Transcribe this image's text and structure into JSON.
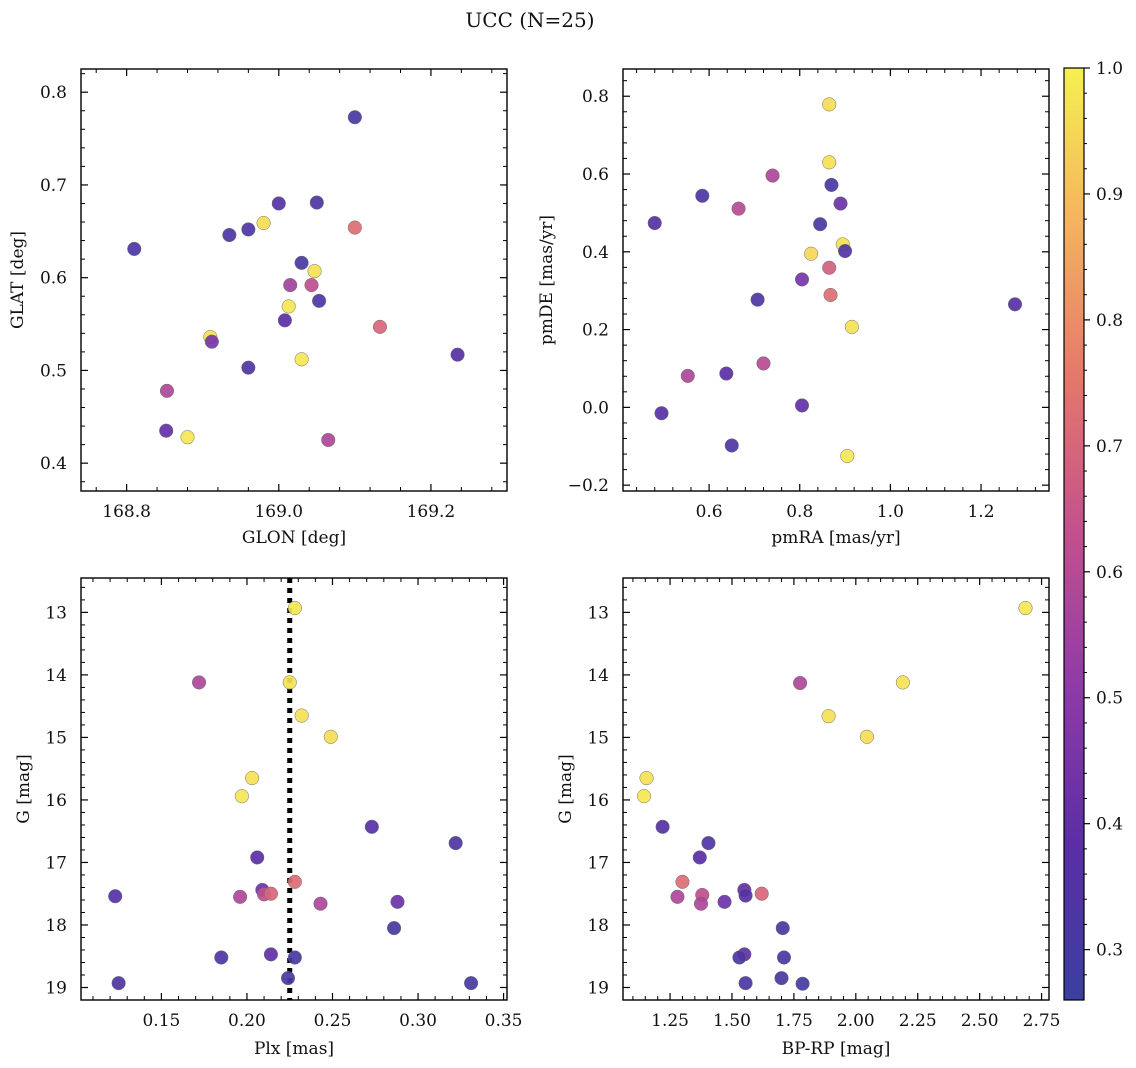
{
  "figure": {
    "title": "UCC (N=25)"
  },
  "colors": {
    "colormap": [
      "#3b3fa0",
      "#5b2ea6",
      "#8e3aa8",
      "#c3508e",
      "#e6776b",
      "#f5b25f",
      "#f5f052"
    ],
    "vline": "#000000"
  },
  "colorbar": {
    "min": 0.26,
    "max": 1.0,
    "ticks": [
      0.3,
      0.4,
      0.5,
      0.6,
      0.7,
      0.8,
      0.9,
      1.0
    ],
    "tick_labels": [
      "0.3",
      "0.4",
      "0.5",
      "0.6",
      "0.7",
      "0.8",
      "0.9",
      "1.0"
    ]
  },
  "chart_data": [
    {
      "type": "scatter",
      "xlabel": "GLON [deg]",
      "ylabel": "GLAT [deg]",
      "xlim": [
        168.74,
        169.3
      ],
      "ylim": [
        0.37,
        0.825
      ],
      "xticks": [
        168.8,
        169.0,
        169.2
      ],
      "xtick_labels": [
        "168.8",
        "169.0",
        "169.2"
      ],
      "yticks": [
        0.4,
        0.5,
        0.6,
        0.7,
        0.8
      ],
      "ytick_labels": [
        "0.4",
        "0.5",
        "0.6",
        "0.7",
        "0.8"
      ],
      "invert_y": false,
      "points": [
        {
          "x": 169.1,
          "y": 0.773,
          "c": 0.3
        },
        {
          "x": 168.81,
          "y": 0.631,
          "c": 0.33
        },
        {
          "x": 168.935,
          "y": 0.646,
          "c": 0.33
        },
        {
          "x": 168.96,
          "y": 0.652,
          "c": 0.33
        },
        {
          "x": 169.0,
          "y": 0.68,
          "c": 0.36
        },
        {
          "x": 169.05,
          "y": 0.681,
          "c": 0.33
        },
        {
          "x": 168.98,
          "y": 0.659,
          "c": 0.96
        },
        {
          "x": 169.03,
          "y": 0.616,
          "c": 0.3
        },
        {
          "x": 169.047,
          "y": 0.607,
          "c": 0.97
        },
        {
          "x": 169.015,
          "y": 0.592,
          "c": 0.55
        },
        {
          "x": 169.043,
          "y": 0.592,
          "c": 0.62
        },
        {
          "x": 169.1,
          "y": 0.654,
          "c": 0.72
        },
        {
          "x": 169.053,
          "y": 0.575,
          "c": 0.33
        },
        {
          "x": 169.013,
          "y": 0.569,
          "c": 0.98
        },
        {
          "x": 169.008,
          "y": 0.554,
          "c": 0.38
        },
        {
          "x": 169.133,
          "y": 0.547,
          "c": 0.7
        },
        {
          "x": 168.91,
          "y": 0.536,
          "c": 0.97
        },
        {
          "x": 168.912,
          "y": 0.531,
          "c": 0.45
        },
        {
          "x": 169.03,
          "y": 0.512,
          "c": 0.98
        },
        {
          "x": 168.96,
          "y": 0.503,
          "c": 0.33
        },
        {
          "x": 169.235,
          "y": 0.517,
          "c": 0.36
        },
        {
          "x": 168.853,
          "y": 0.478,
          "c": 0.58
        },
        {
          "x": 168.852,
          "y": 0.435,
          "c": 0.4
        },
        {
          "x": 168.88,
          "y": 0.428,
          "c": 0.98
        },
        {
          "x": 169.065,
          "y": 0.425,
          "c": 0.58
        }
      ]
    },
    {
      "type": "scatter",
      "xlabel": "pmRA [mas/yr]",
      "ylabel": "pmDE [mas/yr]",
      "xlim": [
        0.41,
        1.35
      ],
      "ylim": [
        -0.215,
        0.87
      ],
      "xticks": [
        0.6,
        0.8,
        1.0,
        1.2
      ],
      "xtick_labels": [
        "0.6",
        "0.8",
        "1.0",
        "1.2"
      ],
      "yticks": [
        -0.2,
        0.0,
        0.2,
        0.4,
        0.6,
        0.8
      ],
      "ytick_labels": [
        "−0.2",
        "0.0",
        "0.2",
        "0.4",
        "0.6",
        "0.8"
      ],
      "invert_y": false,
      "points": [
        {
          "x": 0.865,
          "y": 0.779,
          "c": 0.96
        },
        {
          "x": 0.865,
          "y": 0.63,
          "c": 0.97
        },
        {
          "x": 0.74,
          "y": 0.596,
          "c": 0.58
        },
        {
          "x": 0.87,
          "y": 0.572,
          "c": 0.3
        },
        {
          "x": 0.585,
          "y": 0.544,
          "c": 0.33
        },
        {
          "x": 0.89,
          "y": 0.524,
          "c": 0.42
        },
        {
          "x": 0.665,
          "y": 0.511,
          "c": 0.6
        },
        {
          "x": 0.48,
          "y": 0.474,
          "c": 0.36
        },
        {
          "x": 0.845,
          "y": 0.471,
          "c": 0.3
        },
        {
          "x": 0.895,
          "y": 0.419,
          "c": 0.97
        },
        {
          "x": 0.9,
          "y": 0.402,
          "c": 0.33
        },
        {
          "x": 0.825,
          "y": 0.395,
          "c": 0.95
        },
        {
          "x": 0.865,
          "y": 0.359,
          "c": 0.68
        },
        {
          "x": 0.805,
          "y": 0.329,
          "c": 0.45
        },
        {
          "x": 0.868,
          "y": 0.289,
          "c": 0.72
        },
        {
          "x": 0.707,
          "y": 0.277,
          "c": 0.33
        },
        {
          "x": 1.275,
          "y": 0.265,
          "c": 0.36
        },
        {
          "x": 0.915,
          "y": 0.207,
          "c": 0.97
        },
        {
          "x": 0.72,
          "y": 0.113,
          "c": 0.6
        },
        {
          "x": 0.638,
          "y": 0.087,
          "c": 0.38
        },
        {
          "x": 0.553,
          "y": 0.081,
          "c": 0.58
        },
        {
          "x": 0.805,
          "y": 0.005,
          "c": 0.4
        },
        {
          "x": 0.495,
          "y": -0.015,
          "c": 0.36
        },
        {
          "x": 0.65,
          "y": -0.098,
          "c": 0.33
        },
        {
          "x": 0.905,
          "y": -0.125,
          "c": 0.98
        }
      ]
    },
    {
      "type": "scatter",
      "xlabel": "Plx [mas]",
      "ylabel": "G [mag]",
      "xlim": [
        0.103,
        0.352
      ],
      "ylim": [
        12.45,
        19.2
      ],
      "xticks": [
        0.15,
        0.2,
        0.25,
        0.3,
        0.35
      ],
      "xtick_labels": [
        "0.15",
        "0.20",
        "0.25",
        "0.30",
        "0.35"
      ],
      "yticks": [
        13,
        14,
        15,
        16,
        17,
        18,
        19
      ],
      "ytick_labels": [
        "13",
        "14",
        "15",
        "16",
        "17",
        "18",
        "19"
      ],
      "invert_y": true,
      "vline": 0.225,
      "points": [
        {
          "x": 0.228,
          "y": 12.93,
          "c": 0.98
        },
        {
          "x": 0.172,
          "y": 14.12,
          "c": 0.58
        },
        {
          "x": 0.225,
          "y": 14.12,
          "c": 0.97
        },
        {
          "x": 0.232,
          "y": 14.65,
          "c": 0.97
        },
        {
          "x": 0.249,
          "y": 14.99,
          "c": 0.96
        },
        {
          "x": 0.203,
          "y": 15.65,
          "c": 0.97
        },
        {
          "x": 0.197,
          "y": 15.94,
          "c": 0.98
        },
        {
          "x": 0.273,
          "y": 16.43,
          "c": 0.36
        },
        {
          "x": 0.322,
          "y": 16.69,
          "c": 0.33
        },
        {
          "x": 0.206,
          "y": 16.92,
          "c": 0.38
        },
        {
          "x": 0.228,
          "y": 17.31,
          "c": 0.72
        },
        {
          "x": 0.209,
          "y": 17.44,
          "c": 0.42
        },
        {
          "x": 0.21,
          "y": 17.51,
          "c": 0.62
        },
        {
          "x": 0.214,
          "y": 17.5,
          "c": 0.7
        },
        {
          "x": 0.123,
          "y": 17.54,
          "c": 0.36
        },
        {
          "x": 0.196,
          "y": 17.55,
          "c": 0.58
        },
        {
          "x": 0.243,
          "y": 17.66,
          "c": 0.58
        },
        {
          "x": 0.288,
          "y": 17.63,
          "c": 0.42
        },
        {
          "x": 0.286,
          "y": 18.05,
          "c": 0.3
        },
        {
          "x": 0.185,
          "y": 18.52,
          "c": 0.33
        },
        {
          "x": 0.214,
          "y": 18.47,
          "c": 0.4
        },
        {
          "x": 0.228,
          "y": 18.52,
          "c": 0.3
        },
        {
          "x": 0.224,
          "y": 18.85,
          "c": 0.3
        },
        {
          "x": 0.125,
          "y": 18.93,
          "c": 0.33
        },
        {
          "x": 0.331,
          "y": 18.93,
          "c": 0.3
        }
      ]
    },
    {
      "type": "scatter",
      "xlabel": "BP-RP [mag]",
      "ylabel": "G [mag]",
      "xlim": [
        1.06,
        2.78
      ],
      "ylim": [
        12.45,
        19.2
      ],
      "xticks": [
        1.25,
        1.5,
        1.75,
        2.0,
        2.25,
        2.5,
        2.75
      ],
      "xtick_labels": [
        "1.25",
        "1.50",
        "1.75",
        "2.00",
        "2.25",
        "2.50",
        "2.75"
      ],
      "yticks": [
        13,
        14,
        15,
        16,
        17,
        18,
        19
      ],
      "ytick_labels": [
        "13",
        "14",
        "15",
        "16",
        "17",
        "18",
        "19"
      ],
      "invert_y": true,
      "points": [
        {
          "x": 2.685,
          "y": 12.93,
          "c": 0.98
        },
        {
          "x": 1.775,
          "y": 14.13,
          "c": 0.58
        },
        {
          "x": 2.19,
          "y": 14.12,
          "c": 0.97
        },
        {
          "x": 1.89,
          "y": 14.66,
          "c": 0.97
        },
        {
          "x": 2.045,
          "y": 14.99,
          "c": 0.96
        },
        {
          "x": 1.155,
          "y": 15.65,
          "c": 0.97
        },
        {
          "x": 1.145,
          "y": 15.94,
          "c": 0.98
        },
        {
          "x": 1.22,
          "y": 16.43,
          "c": 0.36
        },
        {
          "x": 1.405,
          "y": 16.69,
          "c": 0.33
        },
        {
          "x": 1.37,
          "y": 16.92,
          "c": 0.38
        },
        {
          "x": 1.3,
          "y": 17.31,
          "c": 0.72
        },
        {
          "x": 1.55,
          "y": 17.44,
          "c": 0.4
        },
        {
          "x": 1.38,
          "y": 17.52,
          "c": 0.62
        },
        {
          "x": 1.555,
          "y": 17.53,
          "c": 0.36
        },
        {
          "x": 1.62,
          "y": 17.5,
          "c": 0.7
        },
        {
          "x": 1.28,
          "y": 17.55,
          "c": 0.58
        },
        {
          "x": 1.47,
          "y": 17.63,
          "c": 0.42
        },
        {
          "x": 1.375,
          "y": 17.66,
          "c": 0.58
        },
        {
          "x": 1.705,
          "y": 18.05,
          "c": 0.3
        },
        {
          "x": 1.55,
          "y": 18.47,
          "c": 0.4
        },
        {
          "x": 1.53,
          "y": 18.52,
          "c": 0.33
        },
        {
          "x": 1.71,
          "y": 18.52,
          "c": 0.3
        },
        {
          "x": 1.7,
          "y": 18.85,
          "c": 0.3
        },
        {
          "x": 1.555,
          "y": 18.93,
          "c": 0.33
        },
        {
          "x": 1.785,
          "y": 18.94,
          "c": 0.3
        }
      ]
    }
  ]
}
